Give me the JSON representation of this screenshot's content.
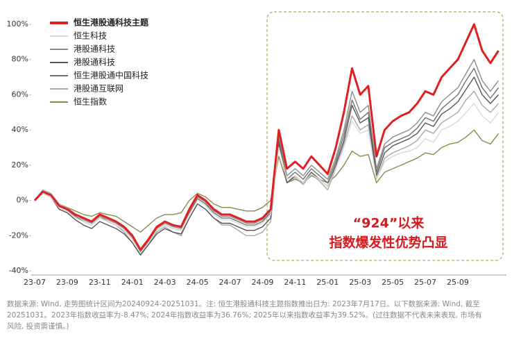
{
  "chart_data": {
    "type": "line",
    "categories": [
      "23-07",
      null,
      null,
      null,
      "23-09",
      null,
      null,
      null,
      "23-11",
      null,
      null,
      null,
      "24-01",
      null,
      null,
      null,
      "24-03",
      null,
      null,
      null,
      "24-05",
      null,
      null,
      null,
      "24-07",
      null,
      null,
      null,
      "24-09",
      null,
      null,
      null,
      "24-11",
      null,
      null,
      null,
      "25-01",
      null,
      null,
      null,
      "25-03",
      null,
      null,
      null,
      "25-05",
      null,
      null,
      null,
      "25-07",
      null,
      null,
      null,
      "25-09",
      null,
      null,
      null,
      null,
      null
    ],
    "series": [
      {
        "name": "恒生港股通科技主题",
        "color": "#e02020",
        "values": [
          0,
          5,
          3,
          -3,
          -5,
          -8,
          -10,
          -12,
          -8,
          -10,
          -12,
          -15,
          -20,
          -28,
          -22,
          -15,
          -12,
          -14,
          -15,
          -5,
          3,
          0,
          -5,
          -8,
          -8,
          -10,
          -12,
          -12,
          -10,
          -5,
          40,
          18,
          22,
          18,
          25,
          20,
          15,
          30,
          50,
          75,
          60,
          65,
          25,
          40,
          45,
          48,
          50,
          55,
          62,
          60,
          70,
          75,
          80,
          90,
          100,
          85,
          78,
          85
        ]
      },
      {
        "name": "恒生科技",
        "color": "#d9d9d9",
        "values": [
          0,
          4,
          2,
          -4,
          -6,
          -10,
          -12,
          -14,
          -10,
          -12,
          -14,
          -17,
          -22,
          -30,
          -24,
          -17,
          -14,
          -16,
          -17,
          -8,
          0,
          -3,
          -8,
          -11,
          -11,
          -13,
          -15,
          -15,
          -13,
          -8,
          30,
          12,
          14,
          10,
          15,
          12,
          8,
          18,
          30,
          45,
          38,
          40,
          12,
          22,
          25,
          27,
          28,
          30,
          35,
          33,
          40,
          42,
          45,
          50,
          55,
          48,
          44,
          50
        ]
      },
      {
        "name": "港股通科技",
        "color": "#8c8c8c",
        "values": [
          0,
          5,
          3,
          -3,
          -5,
          -8,
          -11,
          -13,
          -9,
          -11,
          -13,
          -16,
          -21,
          -29,
          -23,
          -16,
          -13,
          -15,
          -16,
          -6,
          2,
          -1,
          -6,
          -9,
          -9,
          -11,
          -13,
          -13,
          -11,
          -6,
          36,
          14,
          18,
          14,
          20,
          16,
          12,
          24,
          40,
          62,
          50,
          54,
          18,
          32,
          36,
          38,
          40,
          44,
          50,
          48,
          56,
          60,
          64,
          72,
          80,
          68,
          62,
          68
        ]
      },
      {
        "name": "港股通科技",
        "color": "#555555",
        "values": [
          0,
          4,
          2,
          -5,
          -7,
          -11,
          -14,
          -16,
          -12,
          -14,
          -16,
          -19,
          -24,
          -31,
          -25,
          -19,
          -16,
          -18,
          -19,
          -10,
          -2,
          -5,
          -10,
          -13,
          -13,
          -15,
          -17,
          -17,
          -15,
          -10,
          33,
          10,
          14,
          10,
          16,
          12,
          8,
          20,
          34,
          54,
          44,
          47,
          14,
          27,
          31,
          33,
          35,
          38,
          44,
          42,
          49,
          52,
          56,
          63,
          70,
          60,
          55,
          60
        ]
      },
      {
        "name": "恒生港股通中国科技",
        "color": "#707070",
        "values": [
          0,
          5,
          3,
          -4,
          -6,
          -9,
          -12,
          -14,
          -10,
          -12,
          -14,
          -17,
          -22,
          -30,
          -24,
          -17,
          -14,
          -16,
          -17,
          -7,
          1,
          -2,
          -7,
          -10,
          -10,
          -12,
          -14,
          -14,
          -12,
          -7,
          35,
          12,
          16,
          12,
          18,
          14,
          10,
          22,
          37,
          57,
          46,
          50,
          16,
          30,
          33,
          35,
          37,
          41,
          47,
          45,
          52,
          56,
          60,
          68,
          75,
          64,
          58,
          64
        ]
      },
      {
        "name": "港股通互联网",
        "color": "#a8a8a8",
        "values": [
          0,
          6,
          4,
          -2,
          -4,
          -8,
          -10,
          -12,
          -9,
          -12,
          -14,
          -18,
          -24,
          -31,
          -25,
          -18,
          -15,
          -18,
          -20,
          -10,
          -2,
          -5,
          -10,
          -14,
          -14,
          -17,
          -20,
          -20,
          -18,
          -12,
          32,
          10,
          13,
          9,
          15,
          11,
          6,
          18,
          32,
          48,
          40,
          43,
          12,
          24,
          27,
          29,
          31,
          34,
          40,
          38,
          44,
          47,
          50,
          57,
          62,
          54,
          50,
          55
        ]
      },
      {
        "name": "恒生指数",
        "color": "#8c8a4a",
        "values": [
          0,
          4,
          2,
          -3,
          -4,
          -6,
          -8,
          -9,
          -7,
          -8,
          -9,
          -12,
          -15,
          -18,
          -14,
          -10,
          -8,
          -8,
          -7,
          0,
          4,
          2,
          -2,
          -4,
          -4,
          -5,
          -6,
          -6,
          -4,
          0,
          25,
          10,
          12,
          10,
          14,
          12,
          10,
          14,
          20,
          28,
          25,
          26,
          10,
          16,
          18,
          20,
          22,
          24,
          27,
          26,
          30,
          32,
          33,
          36,
          40,
          34,
          32,
          38
        ]
      }
    ],
    "ylim": [
      -40,
      100
    ],
    "yticks": [
      {
        "value": -40,
        "label": "-40%"
      },
      {
        "value": -20,
        "label": "-20%"
      },
      {
        "value": 0,
        "label": "0%"
      },
      {
        "value": 20,
        "label": "20%"
      },
      {
        "value": 40,
        "label": "40%"
      },
      {
        "value": 60,
        "label": "60%"
      },
      {
        "value": 80,
        "label": "80%"
      },
      {
        "value": 100,
        "label": "100%"
      }
    ],
    "grid": false,
    "legend": "top-left",
    "annotations": [
      "“924”以来",
      "指数爆发性优势凸显"
    ],
    "footnote": [
      "数据来源: Wind, 走势图统计区间为20240924-20251031。注: 恒生港股通科技主题指数推出日为: 2023年7月17日。以下数据来源: Wind, 截至",
      "20251031。2023年指数收益率为-8.47%; 2024年指数收益率为36.76%; 2025年以来指数收益率为39.52%。(过往数据不代表未来表现, 市场有",
      "风险, 投资需谨慎。)"
    ]
  }
}
